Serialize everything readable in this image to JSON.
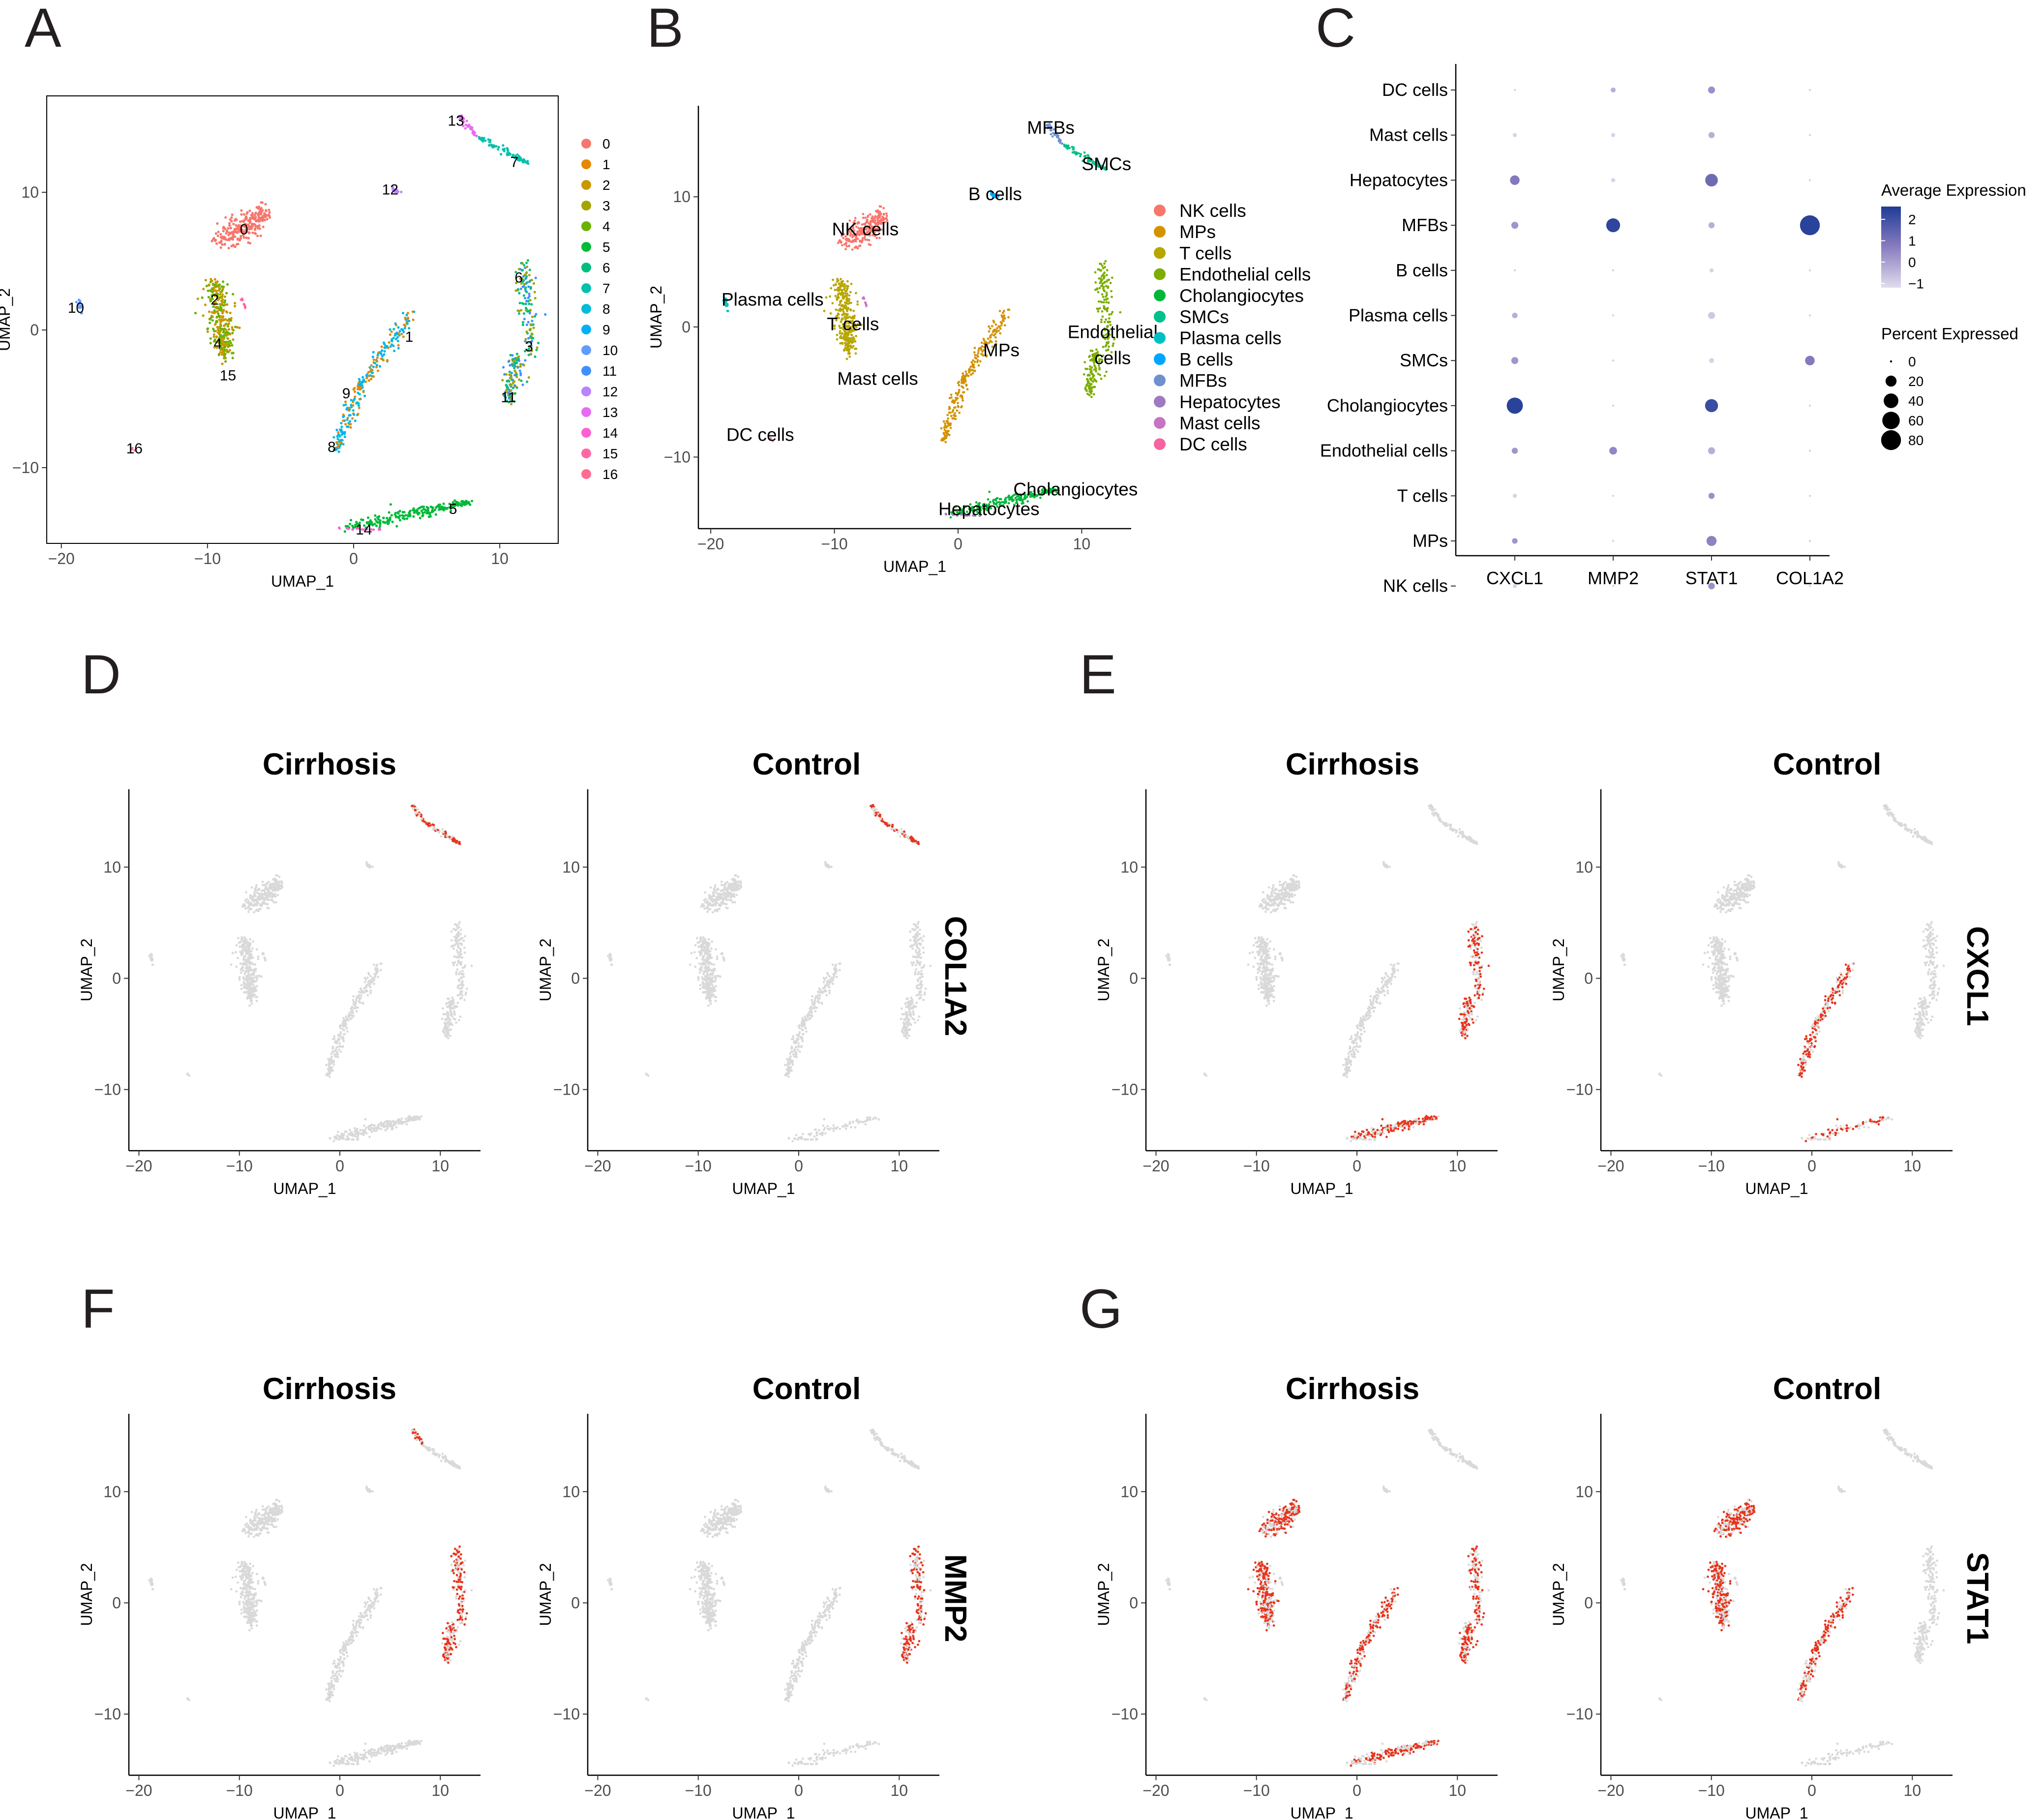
{
  "colors": {
    "feature_high": "#e8341c",
    "feature_low": "#d9d9d9",
    "dot_high": "#1e3c96",
    "dot_mid": "#8a7cc0",
    "dot_low": "#e0dcec"
  },
  "panel_labels": [
    "A",
    "B",
    "C",
    "D",
    "E",
    "F",
    "G"
  ],
  "cluster_colors": [
    "#f8766d",
    "#e58700",
    "#c99800",
    "#a3a500",
    "#6bb100",
    "#00ba38",
    "#00bf7d",
    "#00c0af",
    "#00bcd8",
    "#00b0f6",
    "#619cff",
    "#3f8fff",
    "#b983ff",
    "#e76bf3",
    "#fd61d1",
    "#ff67a4",
    "#ff6c91"
  ],
  "chart_data": [
    {
      "id": "A",
      "type": "scatter",
      "title": "",
      "xlabel": "UMAP_1",
      "ylabel": "UMAP_2",
      "xlim": [
        -21,
        14
      ],
      "ylim": [
        -15.5,
        17
      ],
      "xticks": [
        -20,
        -10,
        0,
        10
      ],
      "xtick_labels": [
        "−20",
        "−10",
        "0",
        "10"
      ],
      "yticks": [
        -10,
        0,
        10
      ],
      "ytick_labels": [
        "−10",
        "0",
        "10"
      ],
      "legend_entries": [
        "0",
        "1",
        "2",
        "3",
        "4",
        "5",
        "6",
        "7",
        "8",
        "9",
        "10",
        "11",
        "12",
        "13",
        "14",
        "15",
        "16"
      ],
      "cluster_labels": [
        {
          "text": "0",
          "x": -7.5,
          "y": 7.3
        },
        {
          "text": "1",
          "x": 3.8,
          "y": -0.5
        },
        {
          "text": "2",
          "x": -9.5,
          "y": 2.2
        },
        {
          "text": "3",
          "x": 12.0,
          "y": -1.2
        },
        {
          "text": "4",
          "x": -9.3,
          "y": -1.0
        },
        {
          "text": "5",
          "x": 6.8,
          "y": -13.0
        },
        {
          "text": "6",
          "x": 11.3,
          "y": 3.8
        },
        {
          "text": "7",
          "x": 11.0,
          "y": 12.2
        },
        {
          "text": "8",
          "x": -1.5,
          "y": -8.5
        },
        {
          "text": "9",
          "x": -0.5,
          "y": -4.6
        },
        {
          "text": "10",
          "x": -19.0,
          "y": 1.6
        },
        {
          "text": "11",
          "x": 10.6,
          "y": -4.9
        },
        {
          "text": "12",
          "x": 2.5,
          "y": 10.2
        },
        {
          "text": "13",
          "x": 7.0,
          "y": 15.2
        },
        {
          "text": "14",
          "x": 0.7,
          "y": -14.5
        },
        {
          "text": "15",
          "x": -8.6,
          "y": -3.3
        },
        {
          "text": "16",
          "x": -15.0,
          "y": -8.6
        }
      ]
    },
    {
      "id": "B",
      "type": "scatter",
      "xlabel": "UMAP_1",
      "ylabel": "UMAP_2",
      "xlim": [
        -21,
        14
      ],
      "ylim": [
        -15.5,
        17
      ],
      "xticks": [
        -20,
        -10,
        0,
        10
      ],
      "xtick_labels": [
        "−20",
        "−10",
        "0",
        "10"
      ],
      "yticks": [
        -10,
        0,
        10
      ],
      "ytick_labels": [
        "−10",
        "0",
        "10"
      ],
      "legend_entries": [
        "NK cells",
        "MPs",
        "T cells",
        "Endothelial cells",
        "Cholangiocytes",
        "SMCs",
        "Plasma cells",
        "B cells",
        "MFBs",
        "Hepatocytes",
        "Mast cells",
        "DC cells"
      ],
      "legend_colors": [
        "#f8766d",
        "#d39200",
        "#b8a600",
        "#7cae00",
        "#00b73a",
        "#00c08b",
        "#00bfc4",
        "#00a6ff",
        "#6f90ce",
        "#9e7ac2",
        "#c874c4",
        "#f564a0"
      ],
      "cluster_labels": [
        {
          "text": "MFBs",
          "x": 7.5,
          "y": 15.3
        },
        {
          "text": "SMCs",
          "x": 12.0,
          "y": 12.5
        },
        {
          "text": "B cells",
          "x": 3.0,
          "y": 10.2
        },
        {
          "text": "NK cells",
          "x": -7.5,
          "y": 7.5
        },
        {
          "text": "Plasma cells",
          "x": -15.0,
          "y": 2.1
        },
        {
          "text": "T cells",
          "x": -8.5,
          "y": 0.2
        },
        {
          "text": "MPs",
          "x": 3.5,
          "y": -1.8
        },
        {
          "text": "Endothelial",
          "x": 12.5,
          "y": -0.4
        },
        {
          "text": "cells",
          "x": 12.5,
          "y": -2.4
        },
        {
          "text": "Mast cells",
          "x": -6.5,
          "y": -4.0
        },
        {
          "text": "DC cells",
          "x": -16.0,
          "y": -8.3
        },
        {
          "text": "Cholangiocytes",
          "x": 9.5,
          "y": -12.5
        },
        {
          "text": "Hepatocytes",
          "x": 2.5,
          "y": -14.0
        }
      ]
    },
    {
      "id": "C",
      "type": "dotplot",
      "genes": [
        "CXCL1",
        "MMP2",
        "STAT1",
        "COL1A2"
      ],
      "cell_types": [
        "DC cells",
        "Mast cells",
        "Hepatocytes",
        "MFBs",
        "B cells",
        "Plasma cells",
        "SMCs",
        "Cholangiocytes",
        "Endothelial cells",
        "T cells",
        "MPs",
        "NK cells"
      ],
      "avg_expression": [
        [
          -1.0,
          -0.3,
          0.3,
          -1.0
        ],
        [
          -1.0,
          -1.0,
          -0.3,
          -1.0
        ],
        [
          0.8,
          -1.0,
          1.2,
          -1.0
        ],
        [
          0.2,
          2.3,
          -0.3,
          2.4
        ],
        [
          -1.0,
          -1.0,
          -1.0,
          -1.0
        ],
        [
          -0.3,
          -1.0,
          -0.8,
          -1.0
        ],
        [
          0.2,
          -1.0,
          -1.0,
          0.8
        ],
        [
          2.4,
          -1.0,
          2.1,
          -1.0
        ],
        [
          0.2,
          0.5,
          -0.3,
          -1.0
        ],
        [
          -1.0,
          -1.0,
          0.3,
          -1.0
        ],
        [
          0.2,
          -1.0,
          0.6,
          -1.0
        ],
        [
          -1.0,
          -1.0,
          0.3,
          -1.0
        ]
      ],
      "pct_expressed": [
        [
          0,
          2,
          6,
          0
        ],
        [
          1,
          1,
          4,
          0
        ],
        [
          14,
          1,
          28,
          0
        ],
        [
          6,
          35,
          4,
          80
        ],
        [
          0,
          0,
          1,
          0
        ],
        [
          3,
          0,
          6,
          0
        ],
        [
          6,
          0,
          2,
          14
        ],
        [
          50,
          0,
          30,
          0
        ],
        [
          4,
          8,
          6,
          0
        ],
        [
          1,
          0,
          4,
          0
        ],
        [
          3,
          0,
          16,
          0
        ],
        [
          1,
          0,
          5,
          0
        ]
      ],
      "legend": {
        "color_title": "Average Expression",
        "color_ticks": [
          2,
          1,
          0,
          -1
        ],
        "color_tick_labels": [
          "2",
          "1",
          "0",
          "−1"
        ],
        "color_range": [
          -1.2,
          2.6
        ],
        "size_title": "Percent Expressed",
        "size_values": [
          0,
          20,
          40,
          60,
          80
        ]
      }
    },
    {
      "id": "D-G",
      "type": "scatter",
      "description": "feature plots",
      "panel_titles": [
        "Cirrhosis",
        "Control"
      ],
      "xlabel": "UMAP_1",
      "ylabel": "UMAP_2",
      "xlim": [
        -21,
        14
      ],
      "ylim": [
        -15.5,
        17
      ],
      "xticks": [
        -20,
        -10,
        0,
        10
      ],
      "xtick_labels": [
        "−20",
        "−10",
        "0",
        "10"
      ],
      "yticks": [
        -10,
        0,
        10
      ],
      "ytick_labels": [
        "−10",
        "0",
        "10"
      ],
      "rows": [
        {
          "panel": "D",
          "gene": "COL1A2",
          "high_clusters": {
            "cirrhosis": [
              "MFBs",
              "SMCs"
            ],
            "control": [
              "MFBs",
              "SMCs"
            ]
          }
        },
        {
          "panel": "E",
          "gene": "CXCL1",
          "high_clusters": {
            "cirrhosis": [
              "Cholangiocytes",
              "Endothelial cells"
            ],
            "control": [
              "Cholangiocytes",
              "MPs"
            ]
          }
        },
        {
          "panel": "F",
          "gene": "MMP2",
          "high_clusters": {
            "cirrhosis": [
              "MFBs",
              "Endothelial cells"
            ],
            "control": [
              "Endothelial cells"
            ]
          }
        },
        {
          "panel": "G",
          "gene": "STAT1",
          "high_clusters": {
            "cirrhosis": [
              "Cholangiocytes",
              "NK cells",
              "T cells",
              "MPs",
              "Endothelial cells"
            ],
            "control": [
              "NK cells",
              "T cells",
              "MPs"
            ]
          }
        }
      ]
    }
  ]
}
